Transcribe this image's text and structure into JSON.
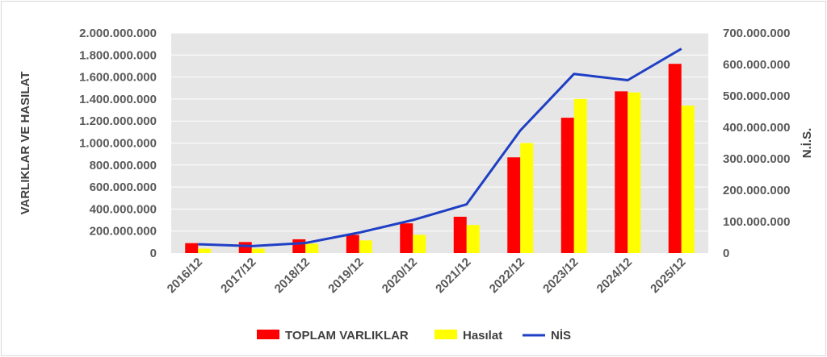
{
  "chart_data": {
    "type": "bar",
    "categories": [
      "2016/12",
      "2017/12",
      "2018/12",
      "2019/12",
      "2020/12",
      "2021/12",
      "2022/12",
      "2023/12",
      "2024/12",
      "2025/12"
    ],
    "series": [
      {
        "name": "TOPLAM VARLIKLAR",
        "type": "bar",
        "axis": "left",
        "color": "#ff0000",
        "values": [
          90000000,
          100000000,
          125000000,
          165000000,
          270000000,
          330000000,
          870000000,
          1230000000,
          1470000000,
          1720000000
        ]
      },
      {
        "name": "Hasılat",
        "type": "bar",
        "axis": "left",
        "color": "#ffff00",
        "values": [
          40000000,
          40000000,
          85000000,
          115000000,
          165000000,
          255000000,
          1000000000,
          1400000000,
          1460000000,
          1340000000
        ]
      },
      {
        "name": "NİS",
        "type": "line",
        "axis": "right",
        "color": "#1f3fc4",
        "values": [
          28000000,
          22000000,
          32000000,
          65000000,
          105000000,
          155000000,
          390000000,
          570000000,
          550000000,
          650000000
        ]
      }
    ],
    "ylabel": "VARLIKLAR VE HASILAT",
    "y2label": "N.İ.S.",
    "ylim": [
      0,
      2000000000
    ],
    "y2lim": [
      0,
      700000000
    ],
    "yticks": [
      "0",
      "200.000.000",
      "400.000.000",
      "600.000.000",
      "800.000.000",
      "1.000.000.000",
      "1.200.000.000",
      "1.400.000.000",
      "1.600.000.000",
      "1.800.000.000",
      "2.000.000.000"
    ],
    "y2ticks": [
      "0",
      "100.000.000",
      "200.000.000",
      "300.000.000",
      "400.000.000",
      "500.000.000",
      "600.000.000",
      "700.000.000"
    ],
    "grid": true,
    "plot_background": "#e6e6e6",
    "legend_position": "bottom"
  }
}
